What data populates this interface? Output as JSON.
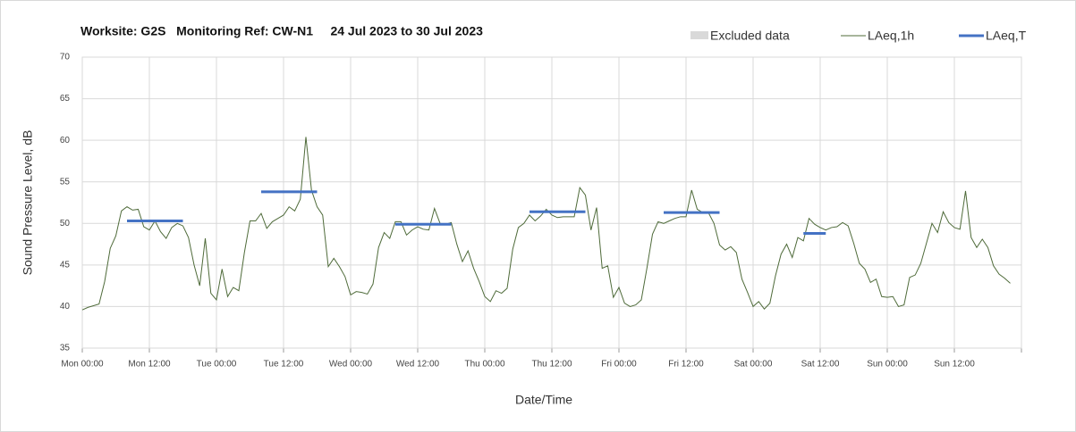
{
  "chart_data": {
    "type": "line",
    "title": "Worksite: G2S   Monitoring Ref: CW-N1     24 Jul 2023 to 30 Jul 2023",
    "xlabel": "Date/Time",
    "ylabel": "Sound Pressure Level, dB",
    "xlim": [
      0,
      168
    ],
    "ylim": [
      35,
      70
    ],
    "yticks": [
      35,
      40,
      45,
      50,
      55,
      60,
      65,
      70
    ],
    "xticks": [
      {
        "value": 0,
        "label": "Mon 00:00"
      },
      {
        "value": 12,
        "label": "Mon 12:00"
      },
      {
        "value": 24,
        "label": "Tue 00:00"
      },
      {
        "value": 36,
        "label": "Tue 12:00"
      },
      {
        "value": 48,
        "label": "Wed 00:00"
      },
      {
        "value": 60,
        "label": "Wed 12:00"
      },
      {
        "value": 72,
        "label": "Thu 00:00"
      },
      {
        "value": 84,
        "label": "Thu 12:00"
      },
      {
        "value": 96,
        "label": "Fri 00:00"
      },
      {
        "value": 108,
        "label": "Fri 12:00"
      },
      {
        "value": 120,
        "label": "Sat 00:00"
      },
      {
        "value": 132,
        "label": "Sat 12:00"
      },
      {
        "value": 144,
        "label": "Sun 00:00"
      },
      {
        "value": 156,
        "label": "Sun 12:00"
      }
    ],
    "grid": true,
    "series": [
      {
        "name": "Excluded data",
        "color": "#d9d9d9",
        "kind": "area",
        "x": [],
        "values": []
      },
      {
        "name": "LAeq,1h",
        "color": "#4f6b3a",
        "kind": "line",
        "width": 1,
        "x": [
          0,
          1,
          2,
          3,
          4,
          5,
          6,
          7,
          8,
          9,
          10,
          11,
          12,
          13,
          14,
          15,
          16,
          17,
          18,
          19,
          20,
          21,
          22,
          23,
          24,
          25,
          26,
          27,
          28,
          29,
          30,
          31,
          32,
          33,
          34,
          35,
          36,
          37,
          38,
          39,
          40,
          41,
          42,
          43,
          44,
          45,
          46,
          47,
          48,
          49,
          50,
          51,
          52,
          53,
          54,
          55,
          56,
          57,
          58,
          59,
          60,
          61,
          62,
          63,
          64,
          65,
          66,
          67,
          68,
          69,
          70,
          71,
          72,
          73,
          74,
          75,
          76,
          77,
          78,
          79,
          80,
          81,
          82,
          83,
          84,
          85,
          86,
          87,
          88,
          89,
          90,
          91,
          92,
          93,
          94,
          95,
          96,
          97,
          98,
          99,
          100,
          101,
          102,
          103,
          104,
          105,
          106,
          107,
          108,
          109,
          110,
          111,
          112,
          113,
          114,
          115,
          116,
          117,
          118,
          119,
          120,
          121,
          122,
          123,
          124,
          125,
          126,
          127,
          128,
          129,
          130,
          131,
          132,
          133,
          134,
          135,
          136,
          137,
          138,
          139,
          140,
          141,
          142,
          143,
          144,
          145,
          146,
          147,
          148,
          149,
          150,
          151,
          152,
          153,
          154,
          155,
          156,
          157,
          158,
          159,
          160,
          161,
          162,
          163,
          164,
          165,
          166
        ],
        "values": [
          39.6,
          39.9,
          40.1,
          40.3,
          43,
          47,
          48.5,
          51.5,
          52,
          51.6,
          51.7,
          49.6,
          49.2,
          50.3,
          49,
          48.2,
          49.5,
          50,
          49.7,
          48.3,
          45,
          42.5,
          48.2,
          41.6,
          40.8,
          44.5,
          41.2,
          42.3,
          41.9,
          46.5,
          50.3,
          50.3,
          51.2,
          49.4,
          50.2,
          50.6,
          51,
          52,
          51.5,
          52.9,
          60.4,
          54,
          52,
          51,
          44.8,
          45.8,
          44.8,
          43.6,
          41.4,
          41.8,
          41.7,
          41.5,
          42.7,
          47.1,
          48.9,
          48.2,
          50.2,
          50.2,
          48.6,
          49.2,
          49.6,
          49.3,
          49.2,
          51.8,
          50,
          49.9,
          50.1,
          47.5,
          45.4,
          46.7,
          44.6,
          43,
          41.2,
          40.6,
          41.9,
          41.6,
          42.2,
          46.9,
          49.5,
          50,
          51,
          50.3,
          50.9,
          51.7,
          51,
          50.7,
          50.8,
          50.8,
          50.8,
          54.3,
          53.4,
          49.2,
          51.9,
          44.6,
          44.9,
          41.1,
          42.3,
          40.4,
          40,
          40.2,
          40.8,
          44.6,
          48.7,
          50.2,
          50,
          50.3,
          50.6,
          50.8,
          50.8,
          54,
          51.7,
          51.3,
          51.3,
          50,
          47.4,
          46.8,
          47.2,
          46.5,
          43.3,
          41.7,
          40,
          40.6,
          39.7,
          40.4,
          43.7,
          46.3,
          47.5,
          45.9,
          48.3,
          47.9,
          50.6,
          49.9,
          49.5,
          49.2,
          49.5,
          49.6,
          50.1,
          49.7,
          47.6,
          45.2,
          44.5,
          42.9,
          43.3,
          41.2,
          41.1,
          41.2,
          40,
          40.2,
          43.5,
          43.8,
          45.2,
          47.6,
          50,
          48.9,
          51.4,
          50.1,
          49.5,
          49.3,
          53.9,
          48.3,
          47.1,
          48.1,
          47.1,
          44.9,
          43.9,
          43.4,
          42.8
        ]
      },
      {
        "name": "LAeq,T",
        "color": "#4472c4",
        "kind": "line",
        "width": 3,
        "x": [
          8,
          18,
          null,
          32,
          42,
          null,
          56,
          66,
          null,
          80,
          90,
          null,
          104,
          114,
          null,
          129,
          133
        ],
        "values": [
          50.3,
          50.3,
          null,
          53.8,
          53.8,
          null,
          49.9,
          49.9,
          null,
          51.4,
          51.4,
          null,
          51.3,
          51.3,
          null,
          48.8,
          48.8
        ]
      }
    ]
  }
}
